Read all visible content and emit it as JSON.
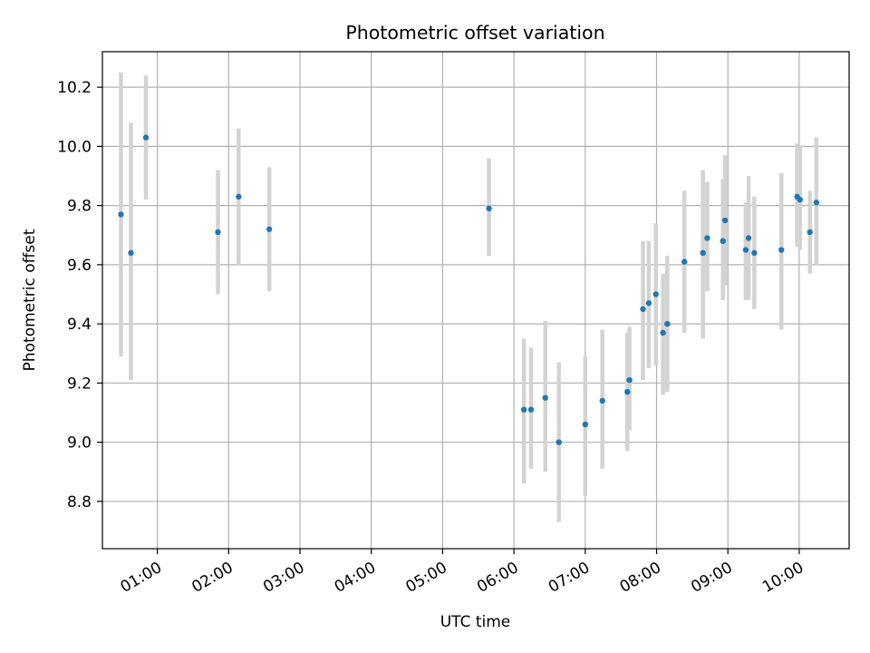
{
  "chart_data": {
    "type": "scatter",
    "title": "Photometric offset variation",
    "xlabel": "UTC time",
    "ylabel": "Photometric offset",
    "grid": true,
    "x_unit": "hours UTC",
    "xlim": [
      0.23,
      10.7
    ],
    "ylim": [
      8.64,
      10.32
    ],
    "x_ticks": [
      1,
      2,
      3,
      4,
      5,
      6,
      7,
      8,
      9,
      10
    ],
    "x_tick_labels": [
      "01:00",
      "02:00",
      "03:00",
      "04:00",
      "05:00",
      "06:00",
      "07:00",
      "08:00",
      "09:00",
      "10:00"
    ],
    "y_ticks": [
      8.8,
      9.0,
      9.2,
      9.4,
      9.6,
      9.8,
      10.0,
      10.2
    ],
    "y_tick_labels": [
      "8.8",
      "9.0",
      "9.2",
      "9.4",
      "9.6",
      "9.8",
      "10.0",
      "10.2"
    ],
    "colors": {
      "marker": "#1f77b4",
      "errorbar": "#d3d3d3",
      "grid": "#b0b0b0"
    },
    "points": [
      {
        "x": 0.49,
        "y": 9.77,
        "err_low": 9.29,
        "err_high": 10.25
      },
      {
        "x": 0.63,
        "y": 9.64,
        "err_low": 9.21,
        "err_high": 10.08
      },
      {
        "x": 0.84,
        "y": 10.03,
        "err_low": 9.82,
        "err_high": 10.24
      },
      {
        "x": 1.85,
        "y": 9.71,
        "err_low": 9.5,
        "err_high": 9.92
      },
      {
        "x": 2.14,
        "y": 9.83,
        "err_low": 9.6,
        "err_high": 10.06
      },
      {
        "x": 2.57,
        "y": 9.72,
        "err_low": 9.51,
        "err_high": 9.93
      },
      {
        "x": 5.65,
        "y": 9.79,
        "err_low": 9.63,
        "err_high": 9.96
      },
      {
        "x": 6.14,
        "y": 9.11,
        "err_low": 8.86,
        "err_high": 9.35
      },
      {
        "x": 6.24,
        "y": 9.11,
        "err_low": 8.91,
        "err_high": 9.32
      },
      {
        "x": 6.44,
        "y": 9.15,
        "err_low": 8.9,
        "err_high": 9.41
      },
      {
        "x": 6.63,
        "y": 9.0,
        "err_low": 8.73,
        "err_high": 9.27
      },
      {
        "x": 7.0,
        "y": 9.06,
        "err_low": 8.82,
        "err_high": 9.29
      },
      {
        "x": 7.24,
        "y": 9.14,
        "err_low": 8.91,
        "err_high": 9.38
      },
      {
        "x": 7.59,
        "y": 9.17,
        "err_low": 8.97,
        "err_high": 9.37
      },
      {
        "x": 7.62,
        "y": 9.21,
        "err_low": 9.04,
        "err_high": 9.39
      },
      {
        "x": 7.81,
        "y": 9.45,
        "err_low": 9.21,
        "err_high": 9.68
      },
      {
        "x": 7.89,
        "y": 9.47,
        "err_low": 9.25,
        "err_high": 9.68
      },
      {
        "x": 7.99,
        "y": 9.5,
        "err_low": 9.26,
        "err_high": 9.74
      },
      {
        "x": 8.09,
        "y": 9.37,
        "err_low": 9.16,
        "err_high": 9.57
      },
      {
        "x": 8.15,
        "y": 9.4,
        "err_low": 9.17,
        "err_high": 9.63
      },
      {
        "x": 8.39,
        "y": 9.61,
        "err_low": 9.37,
        "err_high": 9.85
      },
      {
        "x": 8.65,
        "y": 9.64,
        "err_low": 9.35,
        "err_high": 9.92
      },
      {
        "x": 8.71,
        "y": 9.69,
        "err_low": 9.51,
        "err_high": 9.88
      },
      {
        "x": 8.93,
        "y": 9.68,
        "err_low": 9.48,
        "err_high": 9.89
      },
      {
        "x": 8.96,
        "y": 9.75,
        "err_low": 9.53,
        "err_high": 9.97
      },
      {
        "x": 9.25,
        "y": 9.65,
        "err_low": 9.48,
        "err_high": 9.81
      },
      {
        "x": 9.29,
        "y": 9.69,
        "err_low": 9.48,
        "err_high": 9.9
      },
      {
        "x": 9.37,
        "y": 9.64,
        "err_low": 9.45,
        "err_high": 9.83
      },
      {
        "x": 9.75,
        "y": 9.65,
        "err_low": 9.38,
        "err_high": 9.91
      },
      {
        "x": 9.97,
        "y": 9.83,
        "err_low": 9.66,
        "err_high": 10.01
      },
      {
        "x": 10.01,
        "y": 9.82,
        "err_low": 9.65,
        "err_high": 10.0
      },
      {
        "x": 10.15,
        "y": 9.71,
        "err_low": 9.57,
        "err_high": 9.85
      },
      {
        "x": 10.24,
        "y": 9.81,
        "err_low": 9.6,
        "err_high": 10.03
      }
    ]
  }
}
